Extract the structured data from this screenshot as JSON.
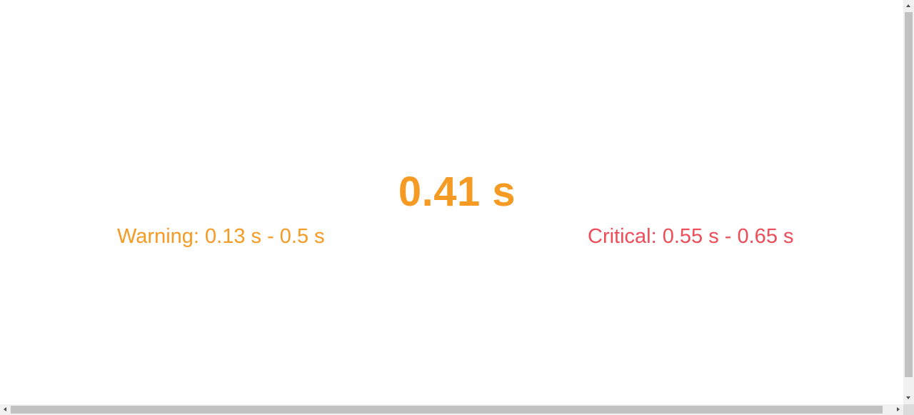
{
  "metric": {
    "value_text": "0.41 s",
    "value": 0.41,
    "unit": "s",
    "status": "warning"
  },
  "thresholds": {
    "warning": {
      "text": "Warning: 0.13 s - 0.5 s",
      "min": 0.13,
      "max": 0.5
    },
    "critical": {
      "text": "Critical: 0.55 s - 0.65 s",
      "min": 0.55,
      "max": 0.65
    }
  },
  "colors": {
    "warning": "#f59a23",
    "critical": "#ee4c58",
    "background": "#ffffff",
    "scrollbar_track": "#f1f1f1",
    "scrollbar_thumb": "#c1c1c1"
  }
}
